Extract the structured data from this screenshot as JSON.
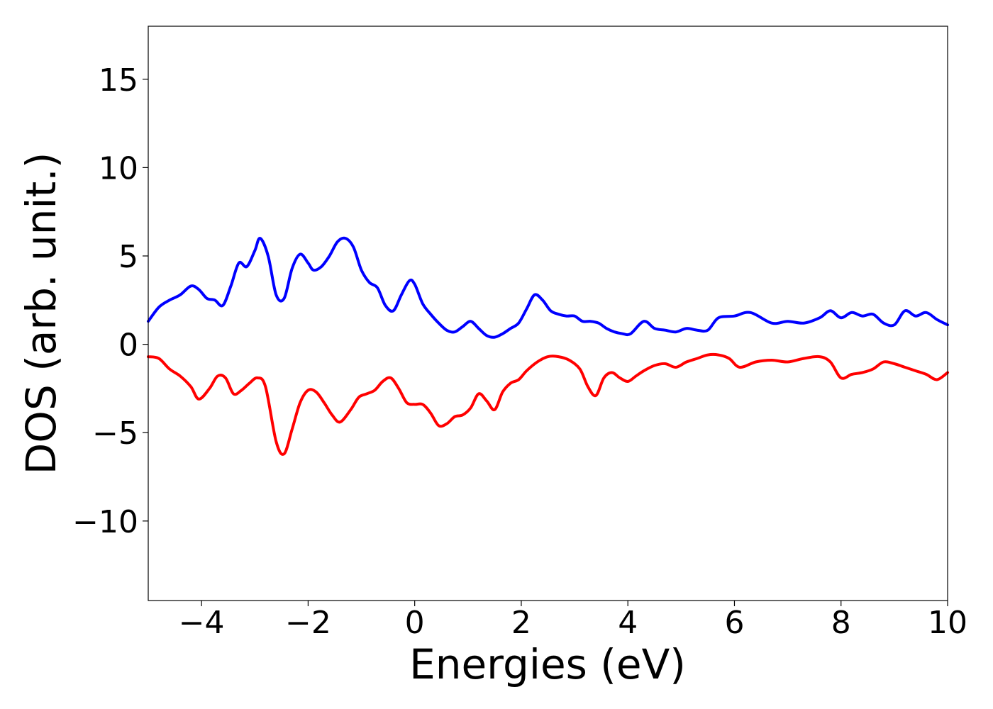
{
  "chart_data": {
    "type": "line",
    "xlabel": "Energies (eV)",
    "ylabel": "DOS (arb. unit.)",
    "xlim": [
      -5,
      10
    ],
    "ylim": [
      -14.5,
      18
    ],
    "xticks": [
      -4,
      -2,
      0,
      2,
      4,
      6,
      8,
      10
    ],
    "xtick_labels": [
      "−4",
      "−2",
      "0",
      "2",
      "4",
      "6",
      "8",
      "10"
    ],
    "yticks": [
      -10,
      -5,
      0,
      5,
      10,
      15
    ],
    "ytick_labels": [
      "−10",
      "−5",
      "0",
      "5",
      "10",
      "15"
    ],
    "grid": false,
    "legend": "none",
    "series": [
      {
        "color": "#0000ff",
        "x": [
          -5.0,
          -4.8,
          -4.6,
          -4.4,
          -4.2,
          -4.05,
          -3.9,
          -3.75,
          -3.6,
          -3.45,
          -3.3,
          -3.15,
          -3.0,
          -2.9,
          -2.75,
          -2.6,
          -2.45,
          -2.3,
          -2.15,
          -2.0,
          -1.9,
          -1.75,
          -1.6,
          -1.45,
          -1.3,
          -1.15,
          -1.0,
          -0.85,
          -0.7,
          -0.55,
          -0.4,
          -0.25,
          -0.1,
          0.0,
          0.15,
          0.3,
          0.45,
          0.6,
          0.75,
          0.9,
          1.05,
          1.2,
          1.35,
          1.5,
          1.65,
          1.8,
          1.95,
          2.1,
          2.25,
          2.4,
          2.55,
          2.7,
          2.85,
          3.0,
          3.15,
          3.3,
          3.45,
          3.6,
          3.75,
          3.9,
          4.05,
          4.3,
          4.5,
          4.7,
          4.9,
          5.1,
          5.3,
          5.5,
          5.7,
          6.0,
          6.3,
          6.7,
          7.0,
          7.3,
          7.6,
          7.8,
          8.0,
          8.2,
          8.4,
          8.6,
          8.8,
          9.0,
          9.2,
          9.4,
          9.6,
          9.8,
          10.0
        ],
        "y": [
          1.3,
          2.1,
          2.5,
          2.8,
          3.3,
          3.1,
          2.6,
          2.5,
          2.2,
          3.3,
          4.6,
          4.4,
          5.3,
          6.0,
          5.0,
          2.8,
          2.6,
          4.3,
          5.1,
          4.6,
          4.2,
          4.4,
          5.0,
          5.8,
          6.0,
          5.5,
          4.2,
          3.5,
          3.2,
          2.2,
          1.9,
          2.8,
          3.6,
          3.4,
          2.3,
          1.7,
          1.2,
          0.8,
          0.7,
          1.0,
          1.3,
          0.9,
          0.5,
          0.4,
          0.6,
          0.9,
          1.2,
          2.0,
          2.8,
          2.5,
          1.9,
          1.7,
          1.6,
          1.6,
          1.3,
          1.3,
          1.2,
          0.9,
          0.7,
          0.6,
          0.6,
          1.3,
          0.9,
          0.8,
          0.7,
          0.9,
          0.8,
          0.8,
          1.5,
          1.6,
          1.8,
          1.2,
          1.3,
          1.2,
          1.5,
          1.9,
          1.5,
          1.8,
          1.6,
          1.7,
          1.2,
          1.1,
          1.9,
          1.6,
          1.8,
          1.4,
          1.1
        ]
      },
      {
        "color": "#ff0000",
        "x": [
          -5.0,
          -4.8,
          -4.6,
          -4.4,
          -4.2,
          -4.05,
          -3.85,
          -3.7,
          -3.55,
          -3.4,
          -3.25,
          -3.1,
          -2.95,
          -2.8,
          -2.6,
          -2.45,
          -2.3,
          -2.15,
          -2.0,
          -1.85,
          -1.7,
          -1.55,
          -1.4,
          -1.2,
          -1.05,
          -0.9,
          -0.75,
          -0.6,
          -0.45,
          -0.3,
          -0.15,
          0.0,
          0.15,
          0.3,
          0.45,
          0.6,
          0.75,
          0.9,
          1.05,
          1.2,
          1.35,
          1.5,
          1.65,
          1.8,
          1.95,
          2.1,
          2.3,
          2.5,
          2.7,
          2.9,
          3.1,
          3.25,
          3.4,
          3.55,
          3.7,
          3.85,
          4.0,
          4.15,
          4.3,
          4.5,
          4.7,
          4.9,
          5.1,
          5.3,
          5.5,
          5.7,
          5.9,
          6.1,
          6.4,
          6.7,
          7.0,
          7.3,
          7.6,
          7.8,
          8.0,
          8.2,
          8.4,
          8.6,
          8.8,
          9.0,
          9.2,
          9.4,
          9.6,
          9.8,
          10.0
        ],
        "y": [
          -0.7,
          -0.8,
          -1.4,
          -1.8,
          -2.4,
          -3.1,
          -2.5,
          -1.8,
          -1.9,
          -2.8,
          -2.6,
          -2.2,
          -1.9,
          -2.4,
          -5.5,
          -6.2,
          -4.8,
          -3.3,
          -2.6,
          -2.7,
          -3.3,
          -4.0,
          -4.4,
          -3.7,
          -3.0,
          -2.8,
          -2.6,
          -2.1,
          -1.9,
          -2.5,
          -3.3,
          -3.4,
          -3.4,
          -3.9,
          -4.6,
          -4.5,
          -4.1,
          -4.0,
          -3.6,
          -2.8,
          -3.2,
          -3.7,
          -2.7,
          -2.2,
          -2.0,
          -1.5,
          -1.0,
          -0.7,
          -0.7,
          -0.9,
          -1.4,
          -2.4,
          -2.9,
          -1.9,
          -1.6,
          -1.9,
          -2.1,
          -1.8,
          -1.5,
          -1.2,
          -1.1,
          -1.3,
          -1.0,
          -0.8,
          -0.6,
          -0.6,
          -0.8,
          -1.3,
          -1.0,
          -0.9,
          -1.0,
          -0.8,
          -0.7,
          -1.0,
          -1.9,
          -1.7,
          -1.6,
          -1.4,
          -1.0,
          -1.1,
          -1.3,
          -1.5,
          -1.7,
          -2.0,
          -1.6
        ]
      }
    ]
  }
}
